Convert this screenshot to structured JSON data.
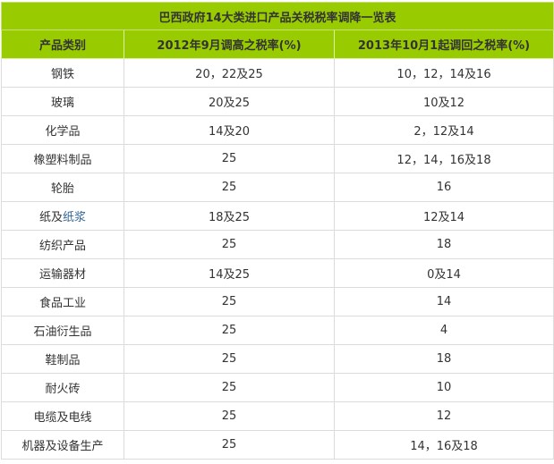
{
  "title": "巴西政府14大类进口产品关税税率调降一览表",
  "accent_color": "#99cc00",
  "link_color": "#336699",
  "headers": [
    "产品类别",
    "2012年9月调高之税率(%)",
    "2013年10月1起调回之税率(%)"
  ],
  "rows": [
    {
      "category": "钢铁",
      "rate_2012": "20，22及25",
      "rate_2013": "10，12，14及16"
    },
    {
      "category": "玻璃",
      "rate_2012": "20及25",
      "rate_2013": "10及12"
    },
    {
      "category": "化学品",
      "rate_2012": "14及20",
      "rate_2013": "2，12及14"
    },
    {
      "category": "橡塑料制品",
      "rate_2012": "25",
      "rate_2013": "12，14，16及18"
    },
    {
      "category": "轮胎",
      "rate_2012": "25",
      "rate_2013": "16"
    },
    {
      "category": "纸及",
      "category_link": "纸浆",
      "rate_2012": "18及25",
      "rate_2013": "12及14"
    },
    {
      "category": "纺织产品",
      "rate_2012": "25",
      "rate_2013": "18"
    },
    {
      "category": "运输器材",
      "rate_2012": "14及25",
      "rate_2013": "0及14"
    },
    {
      "category": "食品工业",
      "rate_2012": "25",
      "rate_2013": "14"
    },
    {
      "category": "石油衍生品",
      "rate_2012": "25",
      "rate_2013": "4"
    },
    {
      "category": "鞋制品",
      "rate_2012": "25",
      "rate_2013": "18"
    },
    {
      "category": "耐火砖",
      "rate_2012": "25",
      "rate_2013": "10"
    },
    {
      "category": "电缆及电线",
      "rate_2012": "25",
      "rate_2013": "12"
    },
    {
      "category": "机器及设备生产",
      "rate_2012": "25",
      "rate_2013": "14，16及18"
    }
  ]
}
